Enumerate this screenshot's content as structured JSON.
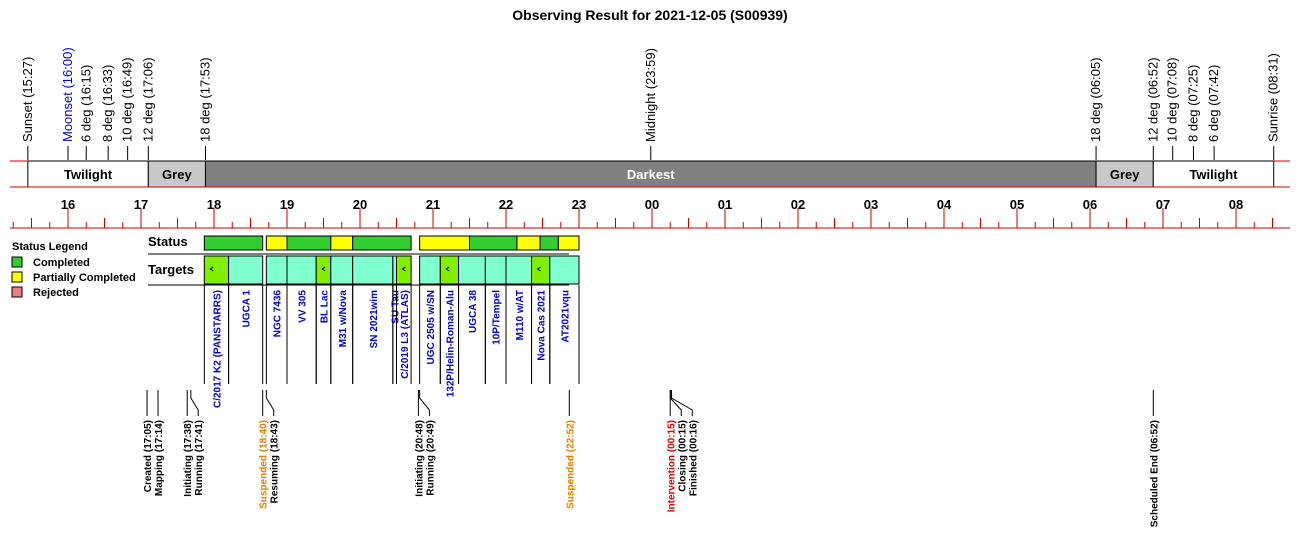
{
  "title": "Observing Result for 2021-12-05 (S00939)",
  "colors": {
    "completed": "#33cc33",
    "partial": "#ffff00",
    "rejected": "#f08080",
    "target_fill": "#80ffd0",
    "target_done": "#80f000",
    "darkest": "#808080",
    "grey": "#c8c8c8",
    "axis": "#cc0000",
    "orange": "#e08000",
    "red": "#dd0000",
    "target_text": "#0000cc",
    "moon": "#0000cc"
  },
  "chart_data": {
    "type": "timeline",
    "title": "Observing Result for 2021-12-05 (S00939)",
    "x_unit": "hours (local time, 16:00 -> 08:00 next day)",
    "hour_labels": [
      "16",
      "17",
      "18",
      "19",
      "20",
      "21",
      "22",
      "23",
      "00",
      "01",
      "02",
      "03",
      "04",
      "05",
      "06",
      "07",
      "08"
    ],
    "sun_events": [
      {
        "label": "Sunset (15:27)",
        "t": 15.45,
        "color": "black"
      },
      {
        "label": "Moonset (16:00)",
        "t": 16.0,
        "color": "blue"
      },
      {
        "label": "6 deg (16:15)",
        "t": 16.25,
        "color": "black"
      },
      {
        "label": "8 deg (16:33)",
        "t": 16.55,
        "color": "black"
      },
      {
        "label": "10 deg (16:49)",
        "t": 16.817,
        "color": "black"
      },
      {
        "label": "12 deg (17:06)",
        "t": 17.1,
        "color": "black"
      },
      {
        "label": "18 deg (17:53)",
        "t": 17.883,
        "color": "black"
      },
      {
        "label": "Midnight (23:59)",
        "t": 23.983,
        "color": "black"
      },
      {
        "label": "18 deg (06:05)",
        "t": 30.083,
        "color": "black"
      },
      {
        "label": "12 deg (06:52)",
        "t": 30.867,
        "color": "black"
      },
      {
        "label": "10 deg (07:08)",
        "t": 31.133,
        "color": "black"
      },
      {
        "label": "8 deg (07:25)",
        "t": 31.417,
        "color": "black"
      },
      {
        "label": "6 deg (07:42)",
        "t": 31.7,
        "color": "black"
      },
      {
        "label": "Sunrise (08:31)",
        "t": 32.517,
        "color": "black"
      }
    ],
    "twilight_bands": [
      {
        "label": "Twilight",
        "start": 15.45,
        "end": 17.1,
        "kind": "twilight"
      },
      {
        "label": "Grey",
        "start": 17.1,
        "end": 17.883,
        "kind": "grey"
      },
      {
        "label": "Darkest",
        "start": 17.883,
        "end": 30.083,
        "kind": "darkest"
      },
      {
        "label": "Grey",
        "start": 30.083,
        "end": 30.867,
        "kind": "grey"
      },
      {
        "label": "Twilight",
        "start": 30.867,
        "end": 32.517,
        "kind": "twilight"
      }
    ],
    "status_label": "Status",
    "status_segments": [
      {
        "start": 17.867,
        "end": 18.667,
        "status": "completed"
      },
      {
        "start": 18.717,
        "end": 19.0,
        "status": "partial"
      },
      {
        "start": 19.0,
        "end": 19.6,
        "status": "completed"
      },
      {
        "start": 19.6,
        "end": 19.9,
        "status": "partial"
      },
      {
        "start": 19.9,
        "end": 20.7,
        "status": "completed"
      },
      {
        "start": 20.817,
        "end": 21.5,
        "status": "partial"
      },
      {
        "start": 21.5,
        "end": 22.15,
        "status": "completed"
      },
      {
        "start": 22.15,
        "end": 22.467,
        "status": "partial"
      },
      {
        "start": 22.467,
        "end": 22.717,
        "status": "completed"
      },
      {
        "start": 22.717,
        "end": 23.0,
        "status": "partial"
      }
    ],
    "targets_label": "Targets",
    "targets": [
      {
        "name": "C/2017 K2 (PANSTARRS)",
        "start": 17.867,
        "end": 18.2,
        "done": true
      },
      {
        "name": "UGCA 1",
        "start": 18.2,
        "end": 18.667,
        "done": false
      },
      {
        "name": "NGC 7436",
        "start": 18.717,
        "end": 19.0,
        "done": false
      },
      {
        "name": "VV 305",
        "start": 19.0,
        "end": 19.4,
        "done": false
      },
      {
        "name": "BL Lac",
        "start": 19.4,
        "end": 19.6,
        "done": true
      },
      {
        "name": "M31 w/Nova",
        "start": 19.6,
        "end": 19.9,
        "done": false
      },
      {
        "name": "SN 2021wim",
        "start": 19.9,
        "end": 20.45,
        "done": false
      },
      {
        "name": "SU Tau",
        "start": 20.45,
        "end": 20.5,
        "done": false
      },
      {
        "name": "C/2019 L3 (ATLAS)",
        "start": 20.5,
        "end": 20.7,
        "done": true
      },
      {
        "name": "UGC 2505 w/SN",
        "start": 20.817,
        "end": 21.1,
        "done": false
      },
      {
        "name": "132P/Helin-Roman-Alu",
        "start": 21.1,
        "end": 21.35,
        "done": true
      },
      {
        "name": "UGCA 38",
        "start": 21.35,
        "end": 21.717,
        "done": false
      },
      {
        "name": "10P/Tempel",
        "start": 21.717,
        "end": 22.0,
        "done": false
      },
      {
        "name": "M110 w/AT",
        "start": 22.0,
        "end": 22.35,
        "done": false
      },
      {
        "name": "Nova Cas 2021",
        "start": 22.35,
        "end": 22.6,
        "done": true
      },
      {
        "name": "AT2021vqu",
        "start": 22.6,
        "end": 23.0,
        "done": false
      }
    ],
    "events": [
      {
        "label": "Created (17:05)",
        "t": 17.083,
        "color": "black"
      },
      {
        "label": "Mapping (17:14)",
        "t": 17.233,
        "color": "black"
      },
      {
        "label": "Initiating (17:38)",
        "t": 17.633,
        "color": "black"
      },
      {
        "label": "Running (17:41)",
        "t": 17.683,
        "color": "black"
      },
      {
        "label": "Suspended (18:40)",
        "t": 18.667,
        "color": "orange"
      },
      {
        "label": "Resuming (18:43)",
        "t": 18.717,
        "color": "black"
      },
      {
        "label": "Initiating (20:48)",
        "t": 20.8,
        "color": "black"
      },
      {
        "label": "Running (20:49)",
        "t": 20.817,
        "color": "black"
      },
      {
        "label": "Suspended (22:52)",
        "t": 22.867,
        "color": "orange"
      },
      {
        "label": "Intervention (00:15)",
        "t": 24.25,
        "color": "red"
      },
      {
        "label": "Closing (00:15)",
        "t": 24.25,
        "color": "black"
      },
      {
        "label": "Finished (00:16)",
        "t": 24.267,
        "color": "black"
      },
      {
        "label": "Scheduled End (06:52)",
        "t": 30.867,
        "color": "black"
      }
    ],
    "legend": {
      "title": "Status Legend",
      "items": [
        {
          "label": "Completed",
          "status": "completed"
        },
        {
          "label": "Partially Completed",
          "status": "partial"
        },
        {
          "label": "Rejected",
          "status": "rejected"
        }
      ]
    }
  }
}
